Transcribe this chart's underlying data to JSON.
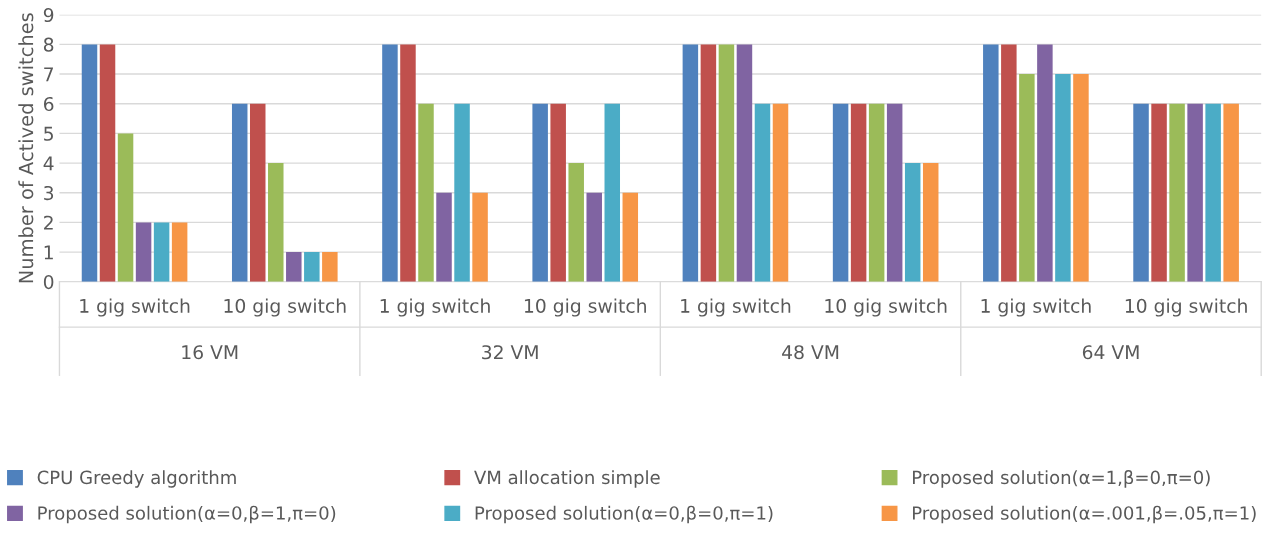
{
  "chart_data": {
    "type": "bar",
    "ylabel": "Number of Actived switches",
    "categories": [
      "1 gig switch",
      "10 gig switch",
      "1 gig switch",
      "10 gig switch",
      "1 gig switch",
      "10 gig switch",
      "1 gig switch",
      "10 gig switch"
    ],
    "annotations": [
      "16 VM",
      "32 VM",
      "48 VM",
      "64 VM"
    ],
    "series": [
      {
        "name": "CPU Greedy algorithm",
        "color": "#4f81bd",
        "values": [
          8,
          6,
          8,
          6,
          8,
          6,
          8,
          6
        ]
      },
      {
        "name": "VM allocation simple",
        "color": "#c0504d",
        "values": [
          8,
          6,
          8,
          6,
          8,
          6,
          8,
          6
        ]
      },
      {
        "name": "Proposed solution(α=1,β=0,π=0)",
        "color": "#9bbb59",
        "values": [
          5,
          4,
          6,
          4,
          8,
          6,
          7,
          6
        ]
      },
      {
        "name": "Proposed solution(α=0,β=1,π=0)",
        "color": "#8064a2",
        "values": [
          2,
          1,
          3,
          3,
          8,
          6,
          8,
          6
        ]
      },
      {
        "name": "Proposed solution(α=0,β=0,π=1)",
        "color": "#4bacc6",
        "values": [
          2,
          1,
          6,
          6,
          6,
          4,
          7,
          6
        ]
      },
      {
        "name": "Proposed solution(α=.001,β=.05,π=1)",
        "color": "#f79646",
        "values": [
          2,
          1,
          3,
          3,
          6,
          4,
          7,
          6
        ]
      }
    ],
    "ylim": [
      0,
      9
    ],
    "yticks": [
      0,
      1,
      2,
      3,
      4,
      5,
      6,
      7,
      8,
      9
    ],
    "grid": "y",
    "legend": "bottom"
  }
}
